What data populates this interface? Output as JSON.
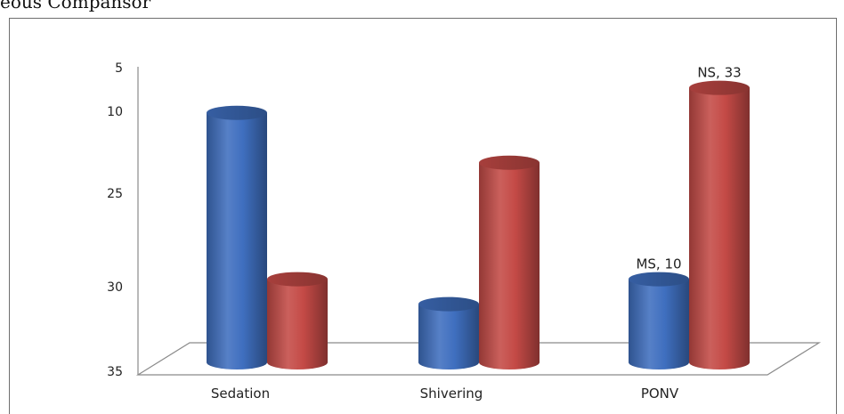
{
  "header_fragment": "eous Compansor",
  "chart_data": {
    "type": "bar",
    "style": "3d-cylinder",
    "categories": [
      "Sedation",
      "Shivering",
      "PONV"
    ],
    "series": [
      {
        "name": "MS",
        "color": "#3f6fbf",
        "values": [
          30,
          7,
          10
        ]
      },
      {
        "name": "NS",
        "color": "#c44a46",
        "values": [
          10,
          24,
          33
        ]
      }
    ],
    "y_tick_labels": [
      "5",
      "10",
      "25",
      "30",
      "35"
    ],
    "data_labels": [
      {
        "series": 0,
        "category": 2,
        "text": "MS, 10"
      },
      {
        "series": 1,
        "category": 2,
        "text": "NS, 33"
      }
    ],
    "title": "",
    "xlabel": "",
    "ylabel": "",
    "ylim": [
      0,
      35
    ],
    "grid": false,
    "legend": "none"
  }
}
